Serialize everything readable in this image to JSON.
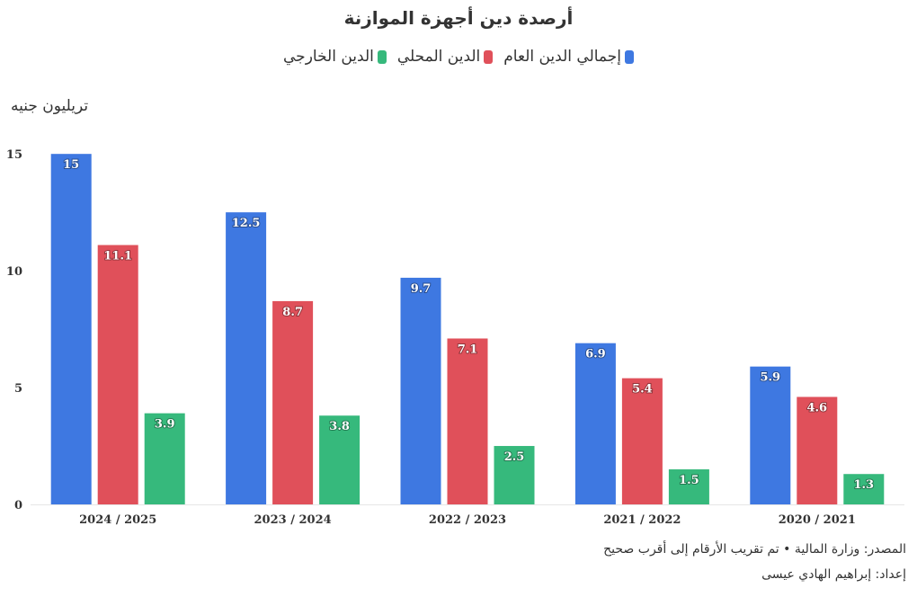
{
  "chart_data": {
    "type": "bar",
    "title": "أرصدة دين أجهزة الموازنة",
    "ylabel": "تريليون جنيه",
    "categories": [
      "2024 / 2025",
      "2023 / 2024",
      "2022 / 2023",
      "2021 / 2022",
      "2020 / 2021"
    ],
    "series": [
      {
        "name": "إجمالي الدين العام",
        "color": "#3e78e1",
        "values": [
          15,
          12.5,
          9.7,
          6.9,
          5.9
        ]
      },
      {
        "name": "الدين المحلي",
        "color": "#e0505a",
        "values": [
          11.1,
          8.7,
          7.1,
          5.4,
          4.6
        ]
      },
      {
        "name": "الدين الخارجي",
        "color": "#36b97c",
        "values": [
          3.9,
          3.8,
          2.5,
          1.5,
          1.3
        ]
      }
    ],
    "ylim": [
      0,
      16.2
    ],
    "yticks": [
      "0",
      "5",
      "10",
      "15"
    ],
    "grid": false,
    "legend_position": "top-center"
  },
  "footer": {
    "source": "المصدر: وزارة المالية • تم تقريب الأرقام إلى أقرب صحيح",
    "credit": "إعداد: إبراهيم الهادي عيسى"
  }
}
